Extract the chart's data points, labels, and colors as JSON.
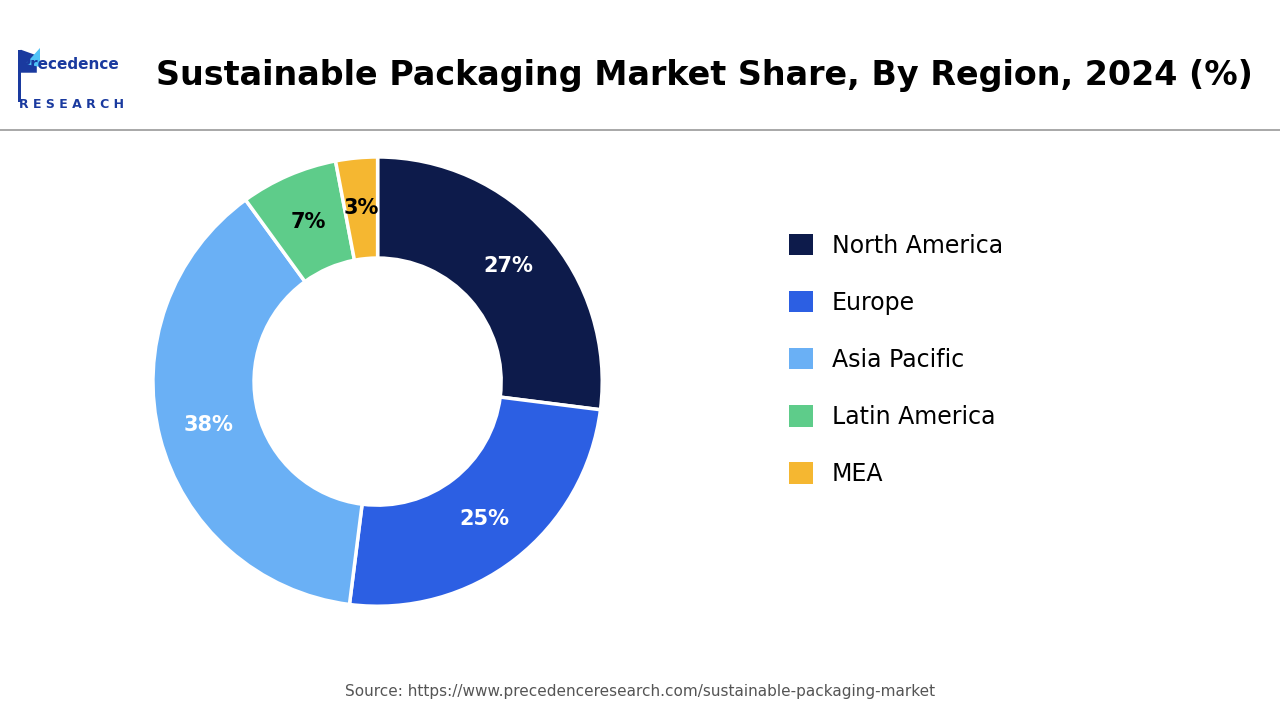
{
  "title": "Sustainable Packaging Market Share, By Region, 2024 (%)",
  "labels": [
    "North America",
    "Europe",
    "Asia Pacific",
    "Latin America",
    "MEA"
  ],
  "values": [
    27,
    25,
    38,
    7,
    3
  ],
  "colors": [
    "#0d1b4b",
    "#2c5fe3",
    "#6ab0f5",
    "#5ecc8a",
    "#f5b731"
  ],
  "text_colors": [
    "white",
    "white",
    "white",
    "black",
    "black"
  ],
  "pct_labels": [
    "27%",
    "25%",
    "38%",
    "7%",
    "3%"
  ],
  "source": "Source: https://www.precedenceresearch.com/sustainable-packaging-market",
  "background_color": "#ffffff",
  "legend_colors": [
    "#0d1b4b",
    "#2c5fe3",
    "#6ab0f5",
    "#5ecc8a",
    "#f5b731"
  ],
  "donut_width": 0.45,
  "start_angle": 90,
  "title_fontsize": 24,
  "label_fontsize": 15,
  "legend_fontsize": 17,
  "source_fontsize": 11
}
